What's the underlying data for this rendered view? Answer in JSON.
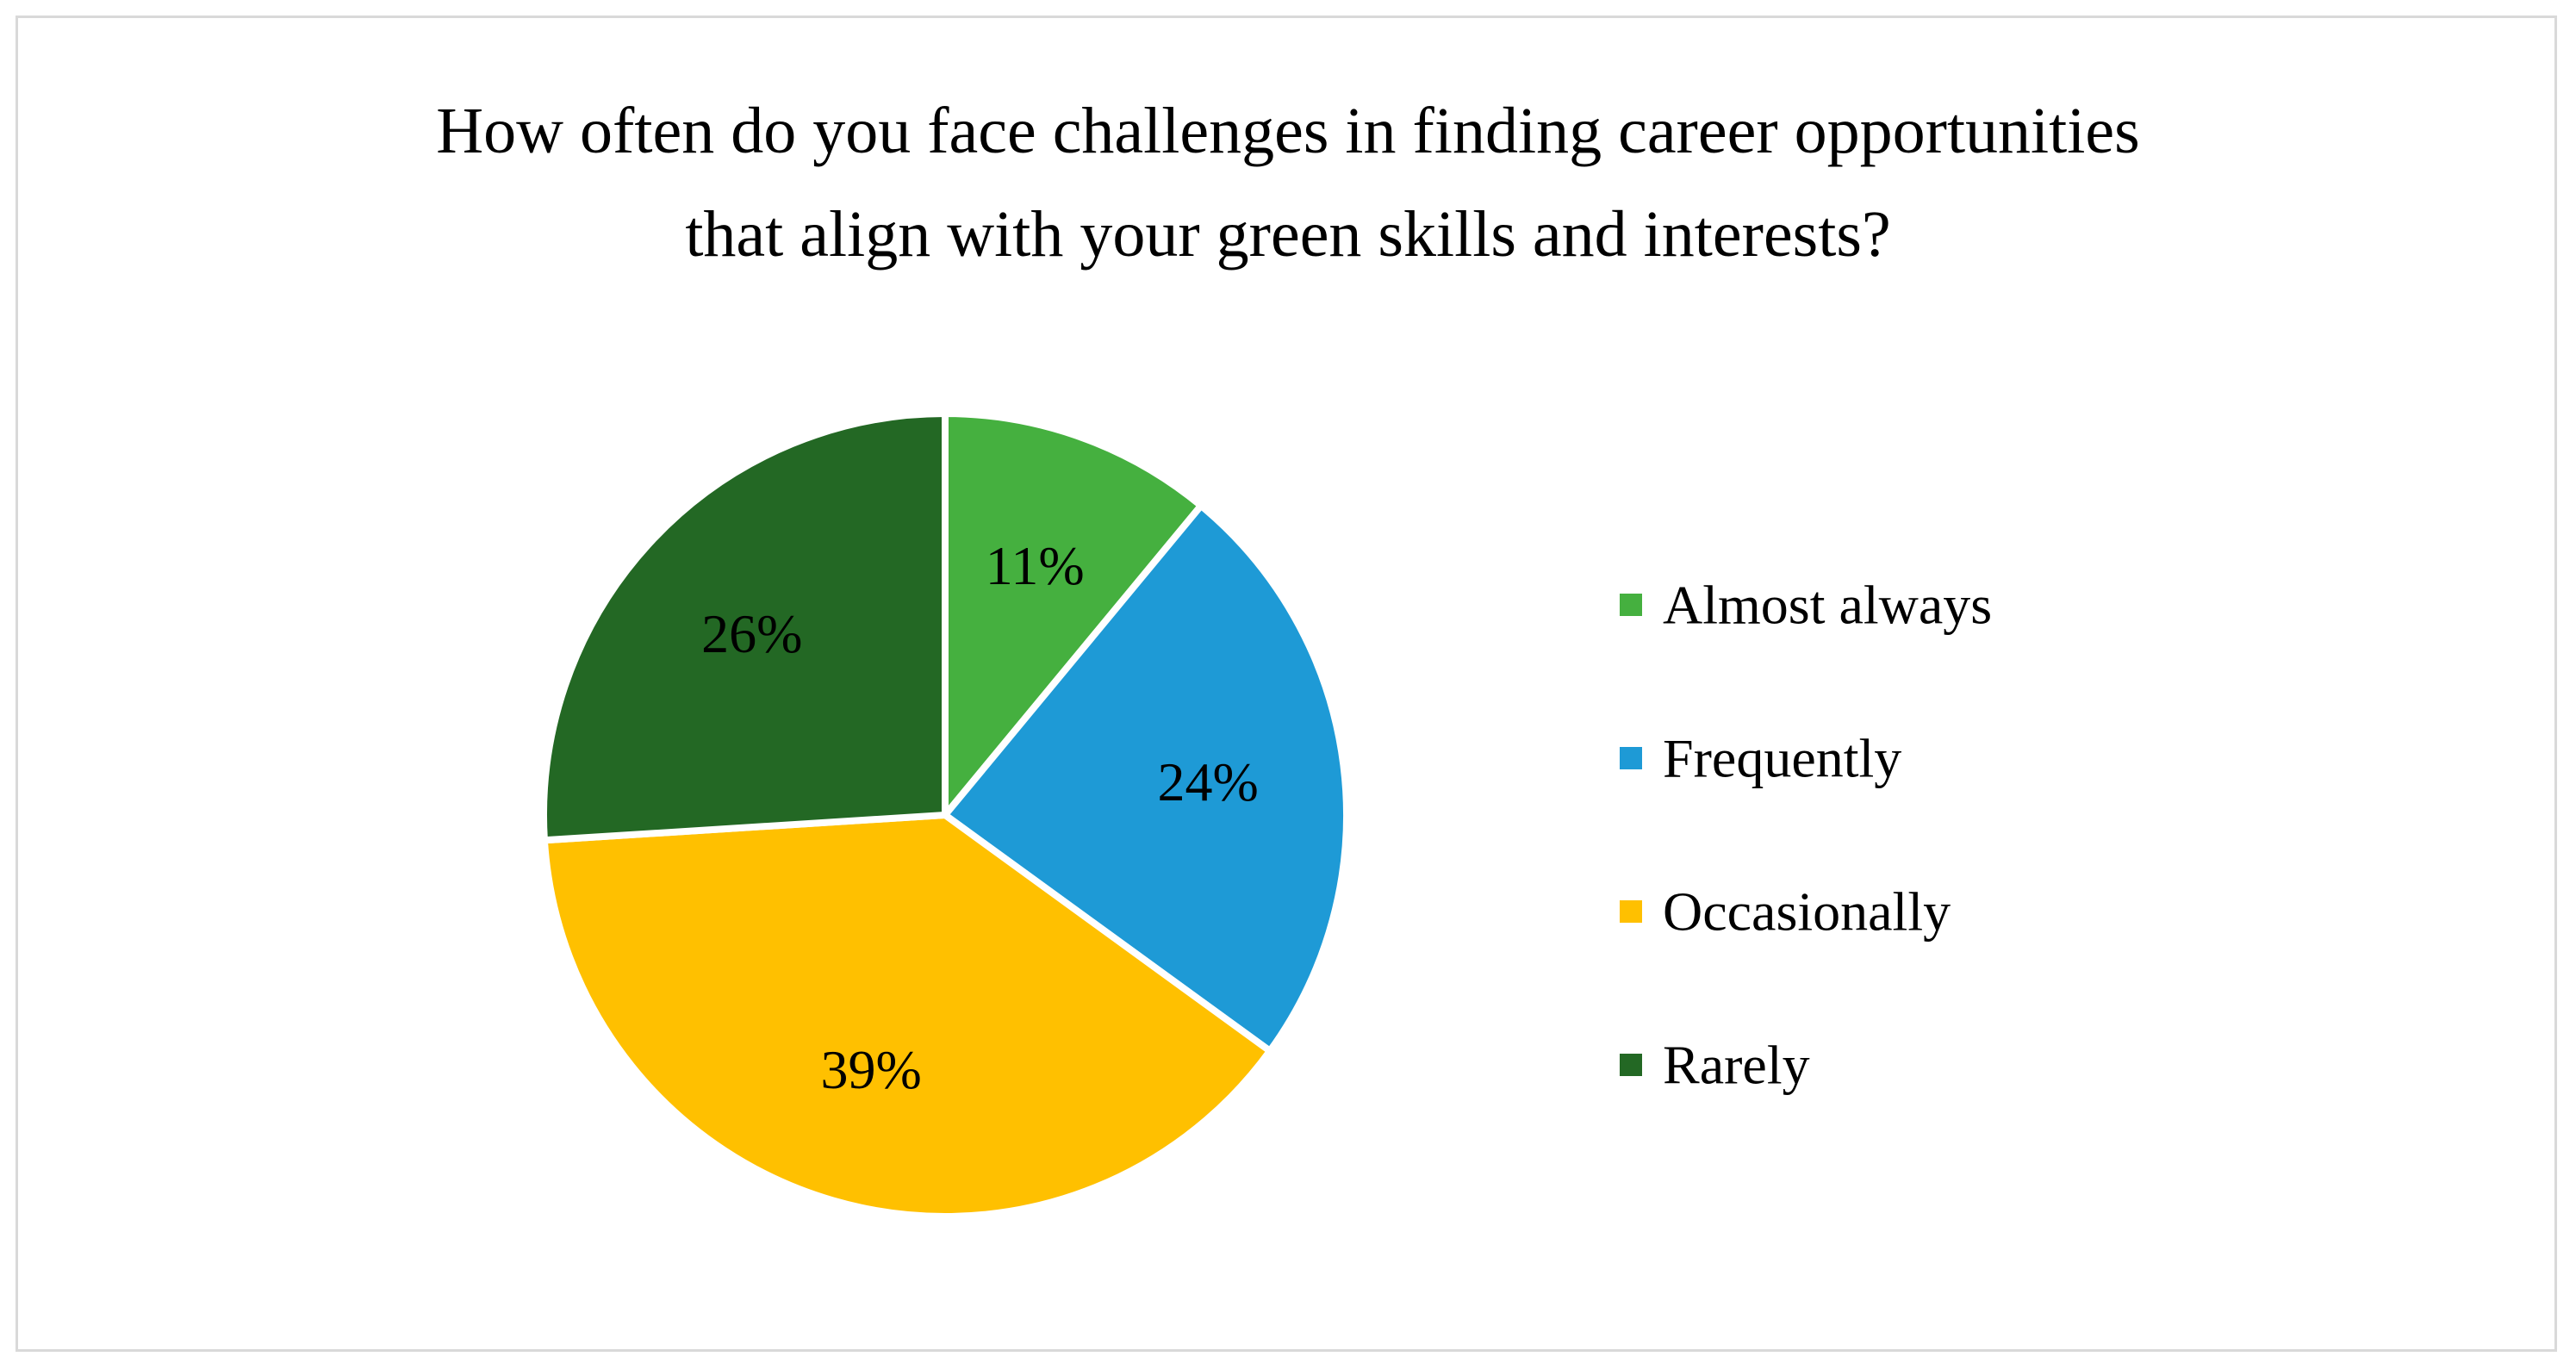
{
  "chart_data": {
    "type": "pie",
    "title": "How often do you face challenges in finding career opportunities\nthat align with your green skills and interests?",
    "categories": [
      "Almost always",
      "Frequently",
      "Occasionally",
      "Rarely"
    ],
    "values": [
      11,
      24,
      39,
      26
    ],
    "value_labels": [
      "11%",
      "24%",
      "39%",
      "26%"
    ],
    "colors": [
      "#45b03f",
      "#1e9ad6",
      "#ffc000",
      "#236824"
    ],
    "legend_position": "right",
    "start_angle": "12 o'clock",
    "direction": "clockwise"
  }
}
